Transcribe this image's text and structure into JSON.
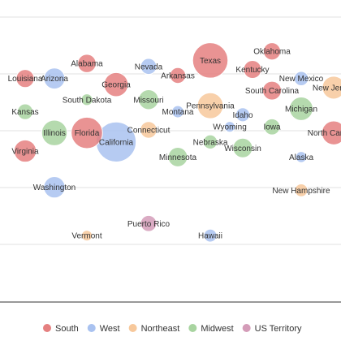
{
  "chart_data": {
    "type": "scatter",
    "title": "",
    "xlabel": "",
    "ylabel": "",
    "xlim": [
      0,
      100
    ],
    "ylim": [
      0,
      100
    ],
    "grid": true,
    "legend_placement": "bottom",
    "colors": {
      "South": "#e58080",
      "West": "#a9c2f0",
      "Northeast": "#f7c89b",
      "Midwest": "#a8d4a0",
      "US Territory": "#d49cb8"
    },
    "legend": [
      {
        "name": "South",
        "color": "#e58080"
      },
      {
        "name": "West",
        "color": "#a9c2f0"
      },
      {
        "name": "Northeast",
        "color": "#f7c89b"
      },
      {
        "name": "Midwest",
        "color": "#a8d4a0"
      },
      {
        "name": "US Territory",
        "color": "#d49cb8"
      }
    ],
    "points": [
      {
        "label": "Oklahoma",
        "region": "South",
        "x": 80,
        "y": 83,
        "size": 4.0
      },
      {
        "label": "Alabama",
        "region": "South",
        "x": 23,
        "y": 79,
        "size": 4.9
      },
      {
        "label": "Nevada",
        "region": "West",
        "x": 42,
        "y": 78,
        "size": 3.1
      },
      {
        "label": "Texas",
        "region": "South",
        "x": 61,
        "y": 80,
        "size": 29.0
      },
      {
        "label": "Kentucky",
        "region": "South",
        "x": 74,
        "y": 77,
        "size": 4.5
      },
      {
        "label": "Louisiana",
        "region": "South",
        "x": 4,
        "y": 74,
        "size": 4.6
      },
      {
        "label": "Arizona",
        "region": "West",
        "x": 13,
        "y": 74,
        "size": 7.3
      },
      {
        "label": "Arkansas",
        "region": "South",
        "x": 51,
        "y": 75,
        "size": 3.0
      },
      {
        "label": "Georgia",
        "region": "South",
        "x": 32,
        "y": 72,
        "size": 10.8
      },
      {
        "label": "New Mexico",
        "region": "West",
        "x": 89,
        "y": 74,
        "size": 2.1
      },
      {
        "label": "South Carolina",
        "region": "South",
        "x": 80,
        "y": 70,
        "size": 5.2
      },
      {
        "label": "New Jersey",
        "region": "Northeast",
        "x": 99,
        "y": 71,
        "size": 9.3
      },
      {
        "label": "South Dakota",
        "region": "Midwest",
        "x": 23,
        "y": 67,
        "size": 0.9
      },
      {
        "label": "Missouri",
        "region": "Midwest",
        "x": 42,
        "y": 67,
        "size": 6.2
      },
      {
        "label": "Pennsylvania",
        "region": "Northeast",
        "x": 61,
        "y": 65,
        "size": 13.0
      },
      {
        "label": "Kansas",
        "region": "Midwest",
        "x": 4,
        "y": 63,
        "size": 2.9
      },
      {
        "label": "Montana",
        "region": "West",
        "x": 51,
        "y": 63,
        "size": 1.1
      },
      {
        "label": "Michigan",
        "region": "Midwest",
        "x": 89,
        "y": 64,
        "size": 10.0
      },
      {
        "label": "Idaho",
        "region": "West",
        "x": 71,
        "y": 62,
        "size": 1.9
      },
      {
        "label": "Wyoming",
        "region": "West",
        "x": 67,
        "y": 58,
        "size": 0.6
      },
      {
        "label": "Iowa",
        "region": "Midwest",
        "x": 80,
        "y": 58,
        "size": 3.2
      },
      {
        "label": "Illinois",
        "region": "Midwest",
        "x": 13,
        "y": 56,
        "size": 12.6
      },
      {
        "label": "Florida",
        "region": "South",
        "x": 23,
        "y": 56,
        "size": 21.5
      },
      {
        "label": "Connecticut",
        "region": "Northeast",
        "x": 42,
        "y": 57,
        "size": 3.6
      },
      {
        "label": "North Carolina",
        "region": "South",
        "x": 99,
        "y": 56,
        "size": 10.4
      },
      {
        "label": "California",
        "region": "West",
        "x": 32,
        "y": 53,
        "size": 39.0
      },
      {
        "label": "Nebraska",
        "region": "Midwest",
        "x": 61,
        "y": 53,
        "size": 2.0
      },
      {
        "label": "Wisconsin",
        "region": "Midwest",
        "x": 71,
        "y": 51,
        "size": 5.9
      },
      {
        "label": "Virginia",
        "region": "South",
        "x": 4,
        "y": 50,
        "size": 8.6
      },
      {
        "label": "Minnesota",
        "region": "Midwest",
        "x": 51,
        "y": 48,
        "size": 5.7
      },
      {
        "label": "Alaska",
        "region": "West",
        "x": 89,
        "y": 48,
        "size": 0.7
      },
      {
        "label": "Washington",
        "region": "West",
        "x": 13,
        "y": 38,
        "size": 7.7
      },
      {
        "label": "New Hampshire",
        "region": "Northeast",
        "x": 89,
        "y": 37,
        "size": 1.4
      },
      {
        "label": "Puerto Rico",
        "region": "US Territory",
        "x": 42,
        "y": 26,
        "size": 3.2
      },
      {
        "label": "Vermont",
        "region": "Northeast",
        "x": 23,
        "y": 22,
        "size": 0.6
      },
      {
        "label": "Hawaii",
        "region": "West",
        "x": 61,
        "y": 22,
        "size": 1.4
      }
    ]
  }
}
